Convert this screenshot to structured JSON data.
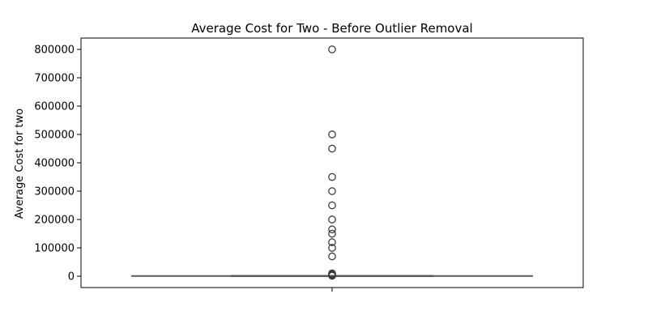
{
  "chart_data": {
    "type": "box",
    "title": "Average Cost for Two - Before Outlier Removal",
    "xlabel": "",
    "ylabel": "Average Cost for two",
    "ylim": [
      -40000,
      840000
    ],
    "yticks": [
      0,
      100000,
      200000,
      300000,
      400000,
      500000,
      600000,
      700000,
      800000
    ],
    "ytick_labels": [
      "0",
      "100000",
      "200000",
      "300000",
      "400000",
      "500000",
      "600000",
      "700000",
      "800000"
    ],
    "grid": false,
    "legend": "none",
    "box": {
      "whisker_low": 0,
      "q1": 250,
      "median": 400,
      "q3": 700,
      "whisker_high": 1350,
      "color": "#5a5a5a",
      "fill": "#1f77b4"
    },
    "outliers": [
      800000,
      500000,
      450000,
      350000,
      300000,
      250000,
      200000,
      165000,
      150000,
      120000,
      100000,
      70000,
      10000,
      7000,
      5000,
      4000,
      3000,
      2500,
      2000,
      1800
    ]
  }
}
